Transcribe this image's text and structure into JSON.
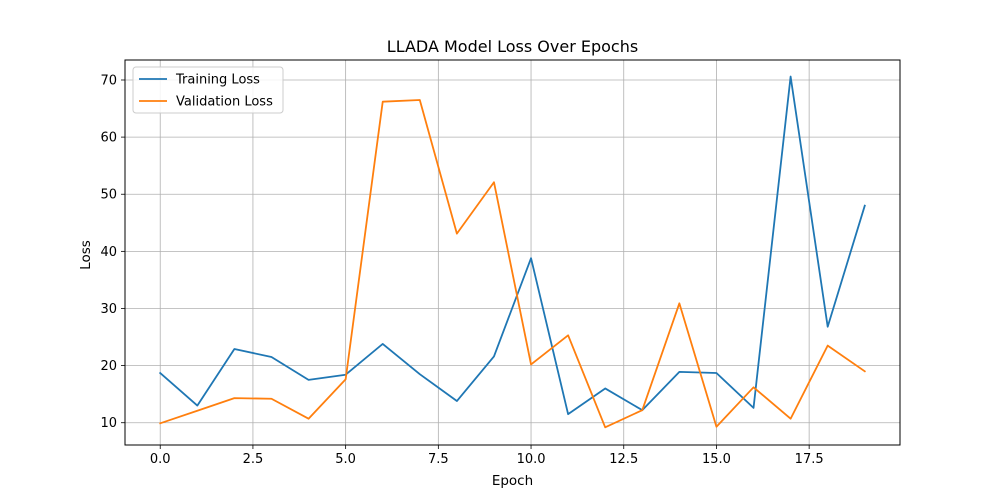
{
  "chart_data": {
    "type": "line",
    "title": "LLADA Model Loss Over Epochs",
    "xlabel": "Epoch",
    "ylabel": "Loss",
    "x": [
      0,
      1,
      2,
      3,
      4,
      5,
      6,
      7,
      8,
      9,
      10,
      11,
      12,
      13,
      14,
      15,
      16,
      17,
      18,
      19
    ],
    "xlim": [
      -0.95,
      19.95
    ],
    "ylim": [
      6.1,
      73.5
    ],
    "x_ticks": [
      0.0,
      2.5,
      5.0,
      7.5,
      10.0,
      12.5,
      15.0,
      17.5
    ],
    "x_tick_labels": [
      "0.0",
      "2.5",
      "5.0",
      "7.5",
      "10.0",
      "12.5",
      "15.0",
      "17.5"
    ],
    "y_ticks": [
      10,
      20,
      30,
      40,
      50,
      60,
      70
    ],
    "y_tick_labels": [
      "10",
      "20",
      "30",
      "40",
      "50",
      "60",
      "70"
    ],
    "grid": true,
    "legend_position": "top-left",
    "series": [
      {
        "name": "Training Loss",
        "color": "#1f77b4",
        "values": [
          18.7,
          13.0,
          22.9,
          21.5,
          17.5,
          18.4,
          23.8,
          18.5,
          13.8,
          21.6,
          38.8,
          11.5,
          16.0,
          12.2,
          18.9,
          18.7,
          12.6,
          70.6,
          26.8,
          48.0
        ]
      },
      {
        "name": "Validation Loss",
        "color": "#ff7f0e",
        "values": [
          9.9,
          12.1,
          14.3,
          14.2,
          10.7,
          17.6,
          66.2,
          66.5,
          43.1,
          52.1,
          20.2,
          25.3,
          9.2,
          12.2,
          30.9,
          9.3,
          16.2,
          10.7,
          23.5,
          19.0
        ]
      }
    ]
  }
}
